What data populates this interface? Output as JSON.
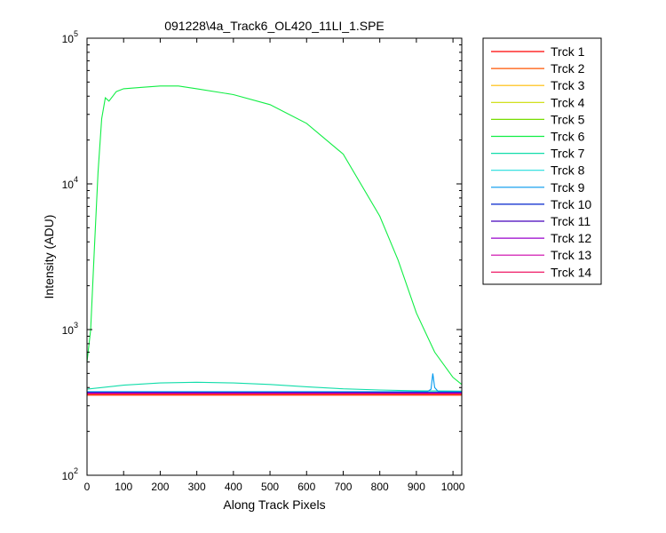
{
  "chart_data": {
    "type": "line",
    "title": "091228\\4a_Track6_OL420_11LI_1.SPE",
    "xlabel": "Along Track Pixels",
    "ylabel": "Intensity (ADU)",
    "xlim": [
      0,
      1024
    ],
    "ylim": [
      100,
      100000
    ],
    "yscale": "log",
    "xticks": [
      0,
      100,
      200,
      300,
      400,
      500,
      600,
      700,
      800,
      900,
      1000
    ],
    "yticks": [
      {
        "value": 100,
        "base": "10",
        "exp": "2"
      },
      {
        "value": 1000,
        "base": "10",
        "exp": "3"
      },
      {
        "value": 10000,
        "base": "10",
        "exp": "4"
      },
      {
        "value": 100000,
        "base": "10",
        "exp": "5"
      }
    ],
    "grid": false,
    "legend_position": "outside-right",
    "series": [
      {
        "name": "Trck 1",
        "color": "#ff0000",
        "x": [
          0,
          1024
        ],
        "y": [
          355,
          355
        ]
      },
      {
        "name": "Trck 2",
        "color": "#ff5500",
        "x": [
          0,
          1024
        ],
        "y": [
          358,
          358
        ]
      },
      {
        "name": "Trck 3",
        "color": "#ffbb00",
        "x": [
          0,
          1024
        ],
        "y": [
          360,
          360
        ]
      },
      {
        "name": "Trck 4",
        "color": "#ccdd00",
        "x": [
          0,
          1024
        ],
        "y": [
          362,
          362
        ]
      },
      {
        "name": "Trck 5",
        "color": "#77dd00",
        "x": [
          0,
          1024
        ],
        "y": [
          364,
          364
        ]
      },
      {
        "name": "Trck 6",
        "color": "#11ee44",
        "x": [
          0,
          10,
          20,
          30,
          40,
          50,
          60,
          80,
          100,
          150,
          200,
          250,
          300,
          400,
          500,
          600,
          700,
          800,
          850,
          900,
          950,
          1000,
          1024
        ],
        "y": [
          600,
          1000,
          3500,
          12000,
          28000,
          39000,
          37000,
          43000,
          45000,
          46000,
          47000,
          47000,
          45000,
          41000,
          35000,
          26000,
          16000,
          6000,
          3000,
          1300,
          700,
          470,
          420
        ]
      },
      {
        "name": "Trck 7",
        "color": "#11ddaa",
        "x": [
          0,
          100,
          200,
          300,
          400,
          500,
          600,
          700,
          800,
          900,
          1024
        ],
        "y": [
          390,
          415,
          430,
          435,
          430,
          420,
          405,
          392,
          385,
          380,
          378
        ]
      },
      {
        "name": "Trck 8",
        "color": "#22dddd",
        "x": [
          0,
          1024
        ],
        "y": [
          372,
          372
        ]
      },
      {
        "name": "Trck 9",
        "color": "#0099ee",
        "x": [
          0,
          930,
          940,
          945,
          950,
          960,
          1024
        ],
        "y": [
          375,
          375,
          390,
          500,
          400,
          375,
          375
        ]
      },
      {
        "name": "Trck 10",
        "color": "#0022cc",
        "x": [
          0,
          1024
        ],
        "y": [
          370,
          370
        ]
      },
      {
        "name": "Trck 11",
        "color": "#4400bb",
        "x": [
          0,
          1024
        ],
        "y": [
          368,
          368
        ]
      },
      {
        "name": "Trck 12",
        "color": "#9900cc",
        "x": [
          0,
          1024
        ],
        "y": [
          366,
          366
        ]
      },
      {
        "name": "Trck 13",
        "color": "#cc00aa",
        "x": [
          0,
          1024
        ],
        "y": [
          363,
          363
        ]
      },
      {
        "name": "Trck 14",
        "color": "#ee0055",
        "x": [
          0,
          1024
        ],
        "y": [
          361,
          361
        ]
      }
    ]
  }
}
